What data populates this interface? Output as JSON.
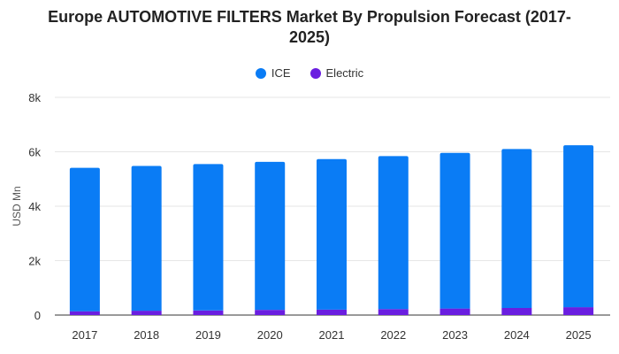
{
  "chart_data": {
    "type": "bar",
    "stacked": true,
    "title_line1": "Europe AUTOMOTIVE FILTERS Market By Propulsion Forecast (2017-",
    "title_line2": "2025)",
    "ylabel": "USD Mn",
    "xlabel": "",
    "ylim": [
      0,
      8000
    ],
    "y_ticks": [
      {
        "value": 0,
        "label": "0"
      },
      {
        "value": 2000,
        "label": "2k"
      },
      {
        "value": 4000,
        "label": "4k"
      },
      {
        "value": 6000,
        "label": "6k"
      },
      {
        "value": 8000,
        "label": "8k"
      }
    ],
    "grid": true,
    "legend_position": "top-center",
    "categories": [
      "2017",
      "2018",
      "2019",
      "2020",
      "2021",
      "2022",
      "2023",
      "2024",
      "2025"
    ],
    "series": [
      {
        "name": "Electric",
        "color": "#6a1ee0",
        "values": [
          140,
          160,
          170,
          190,
          200,
          220,
          240,
          260,
          290
        ]
      },
      {
        "name": "ICE",
        "color": "#0a7cf5",
        "values": [
          5270,
          5320,
          5380,
          5440,
          5530,
          5620,
          5720,
          5840,
          5950
        ]
      }
    ],
    "legend_order": [
      "ICE",
      "Electric"
    ]
  }
}
